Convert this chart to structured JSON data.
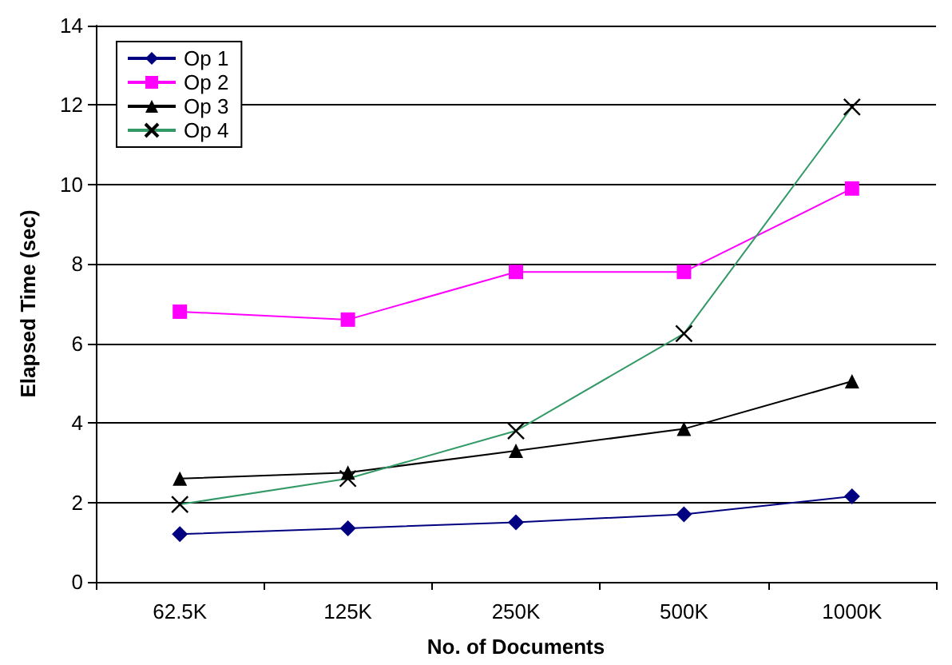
{
  "chart_data": {
    "type": "line",
    "xlabel": "No. of Documents",
    "ylabel": "Elapsed Time (sec)",
    "categories": [
      "62.5K",
      "125K",
      "250K",
      "500K",
      "1000K"
    ],
    "series": [
      {
        "name": "Op 1",
        "color": "#000080",
        "marker": "diamond",
        "values": [
          1.2,
          1.35,
          1.5,
          1.7,
          2.15
        ]
      },
      {
        "name": "Op 2",
        "color": "#ff00ff",
        "marker": "square",
        "values": [
          6.8,
          6.6,
          7.8,
          7.8,
          9.9
        ]
      },
      {
        "name": "Op 3",
        "color": "#000000",
        "marker": "triangle",
        "values": [
          2.6,
          2.75,
          3.3,
          3.85,
          5.05
        ]
      },
      {
        "name": "Op 4",
        "color": "#339966",
        "marker": "cross",
        "values": [
          1.95,
          2.6,
          3.8,
          6.25,
          11.95
        ]
      }
    ],
    "ylim": [
      0,
      14
    ],
    "yticks": [
      0,
      2,
      4,
      6,
      8,
      10,
      12,
      14
    ],
    "grid": "y",
    "legend": "top left"
  }
}
